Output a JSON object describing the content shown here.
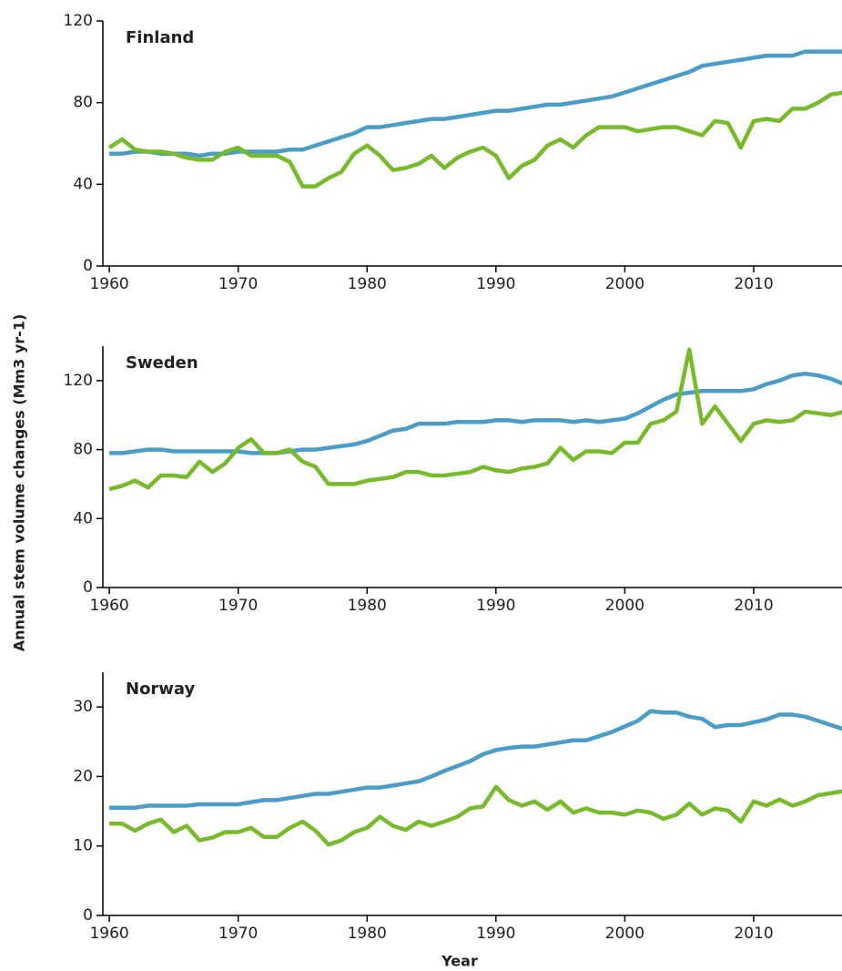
{
  "chart_data": [
    {
      "type": "line",
      "title": "Finland",
      "x": [
        1960,
        1961,
        1962,
        1963,
        1964,
        1965,
        1966,
        1967,
        1968,
        1969,
        1970,
        1971,
        1972,
        1973,
        1974,
        1975,
        1976,
        1977,
        1978,
        1979,
        1980,
        1981,
        1982,
        1983,
        1984,
        1985,
        1986,
        1987,
        1988,
        1989,
        1990,
        1991,
        1992,
        1993,
        1994,
        1995,
        1996,
        1997,
        1998,
        1999,
        2000,
        2001,
        2002,
        2003,
        2004,
        2005,
        2006,
        2007,
        2008,
        2009,
        2010,
        2011,
        2012,
        2013,
        2014,
        2015,
        2016,
        2017
      ],
      "series": [
        {
          "color": "#4a9cc9",
          "values": [
            55,
            55,
            56,
            56,
            55,
            55,
            55,
            54,
            55,
            55,
            56,
            56,
            56,
            56,
            57,
            57,
            59,
            61,
            63,
            65,
            68,
            68,
            69,
            70,
            71,
            72,
            72,
            73,
            74,
            75,
            76,
            76,
            77,
            78,
            79,
            79,
            80,
            81,
            82,
            83,
            85,
            87,
            89,
            91,
            93,
            95,
            98,
            99,
            100,
            101,
            102,
            103,
            103,
            103,
            105,
            105,
            105,
            105
          ]
        },
        {
          "color": "#78bb2a",
          "values": [
            58,
            62,
            57,
            56,
            56,
            55,
            53,
            52,
            52,
            56,
            58,
            54,
            54,
            54,
            51,
            39,
            39,
            43,
            46,
            55,
            59,
            54,
            47,
            48,
            50,
            54,
            48,
            53,
            56,
            58,
            54,
            43,
            49,
            52,
            59,
            62,
            58,
            64,
            68,
            68,
            68,
            66,
            67,
            68,
            68,
            66,
            64,
            71,
            70,
            58,
            71,
            72,
            71,
            77,
            77,
            80,
            84,
            85
          ]
        }
      ],
      "xlim": [
        1959.5,
        2016.85
      ],
      "xticks": [
        1960,
        1970,
        1980,
        1990,
        2000,
        2010
      ],
      "ylim": [
        0,
        120
      ],
      "yticks": [
        0,
        40,
        80,
        120
      ]
    },
    {
      "type": "line",
      "title": "Sweden",
      "ylabel": "Annual stem volume changes (Mm3 yr-1)",
      "x": [
        1960,
        1961,
        1962,
        1963,
        1964,
        1965,
        1966,
        1967,
        1968,
        1969,
        1970,
        1971,
        1972,
        1973,
        1974,
        1975,
        1976,
        1977,
        1978,
        1979,
        1980,
        1981,
        1982,
        1983,
        1984,
        1985,
        1986,
        1987,
        1988,
        1989,
        1990,
        1991,
        1992,
        1993,
        1994,
        1995,
        1996,
        1997,
        1998,
        1999,
        2000,
        2001,
        2002,
        2003,
        2004,
        2005,
        2006,
        2007,
        2008,
        2009,
        2010,
        2011,
        2012,
        2013,
        2014,
        2015,
        2016,
        2017
      ],
      "series": [
        {
          "color": "#4a9cc9",
          "values": [
            78,
            78,
            79,
            80,
            80,
            79,
            79,
            79,
            79,
            79,
            79,
            78,
            78,
            78,
            79,
            80,
            80,
            81,
            82,
            83,
            85,
            88,
            91,
            92,
            95,
            95,
            95,
            96,
            96,
            96,
            97,
            97,
            96,
            97,
            97,
            97,
            96,
            97,
            96,
            97,
            98,
            101,
            105,
            109,
            112,
            113,
            114,
            114,
            114,
            114,
            115,
            118,
            120,
            123,
            124,
            123,
            121,
            118
          ]
        },
        {
          "color": "#78bb2a",
          "values": [
            57,
            59,
            62,
            58,
            65,
            65,
            64,
            73,
            67,
            72,
            81,
            86,
            78,
            78,
            80,
            73,
            70,
            60,
            60,
            60,
            62,
            63,
            64,
            67,
            67,
            65,
            65,
            66,
            67,
            70,
            68,
            67,
            69,
            70,
            72,
            81,
            74,
            79,
            79,
            78,
            84,
            84,
            95,
            97,
            102,
            138,
            95,
            105,
            95,
            85,
            95,
            97,
            96,
            97,
            102,
            101,
            100,
            102
          ]
        }
      ],
      "xlim": [
        1959.5,
        2016.85
      ],
      "xticks": [
        1960,
        1970,
        1980,
        1990,
        2000,
        2010
      ],
      "ylim": [
        0,
        140
      ],
      "yticks": [
        0,
        40,
        80,
        120
      ]
    },
    {
      "type": "line",
      "title": "Norway",
      "xlabel": "Year",
      "x": [
        1960,
        1961,
        1962,
        1963,
        1964,
        1965,
        1966,
        1967,
        1968,
        1969,
        1970,
        1971,
        1972,
        1973,
        1974,
        1975,
        1976,
        1977,
        1978,
        1979,
        1980,
        1981,
        1982,
        1983,
        1984,
        1985,
        1986,
        1987,
        1988,
        1989,
        1990,
        1991,
        1992,
        1993,
        1994,
        1995,
        1996,
        1997,
        1998,
        1999,
        2000,
        2001,
        2002,
        2003,
        2004,
        2005,
        2006,
        2007,
        2008,
        2009,
        2010,
        2011,
        2012,
        2013,
        2014,
        2015,
        2016,
        2017
      ],
      "series": [
        {
          "color": "#4a9cc9",
          "values": [
            15.5,
            15.5,
            15.5,
            15.8,
            15.8,
            15.8,
            15.8,
            16,
            16,
            16,
            16,
            16.3,
            16.6,
            16.6,
            16.9,
            17.2,
            17.5,
            17.5,
            17.8,
            18.1,
            18.4,
            18.4,
            18.7,
            19,
            19.3,
            20,
            20.8,
            21.5,
            22.2,
            23.2,
            23.8,
            24.1,
            24.3,
            24.3,
            24.6,
            24.9,
            25.2,
            25.2,
            25.8,
            26.4,
            27.2,
            28,
            29.4,
            29.2,
            29.2,
            28.6,
            28.3,
            27.1,
            27.4,
            27.4,
            27.8,
            28.2,
            28.9,
            28.9,
            28.6,
            28,
            27.4,
            26.8
          ]
        },
        {
          "color": "#78bb2a",
          "values": [
            13.2,
            13.2,
            12.2,
            13.2,
            13.8,
            12,
            12.9,
            10.8,
            11.2,
            12,
            12,
            12.6,
            11.3,
            11.3,
            12.6,
            13.5,
            12.2,
            10.2,
            10.8,
            12,
            12.6,
            14.2,
            12.9,
            12.3,
            13.5,
            12.9,
            13.5,
            14.2,
            15.4,
            15.7,
            18.5,
            16.6,
            15.8,
            16.4,
            15.2,
            16.4,
            14.8,
            15.4,
            14.8,
            14.8,
            14.5,
            15.1,
            14.8,
            13.9,
            14.5,
            16.1,
            14.5,
            15.4,
            15.1,
            13.5,
            16.4,
            15.8,
            16.7,
            15.8,
            16.4,
            17.3,
            17.6,
            17.9
          ]
        }
      ],
      "xlim": [
        1959.5,
        2016.85
      ],
      "xticks": [
        1960,
        1970,
        1980,
        1990,
        2000,
        2010
      ],
      "ylim": [
        0,
        35
      ],
      "yticks": [
        0,
        10,
        20,
        30
      ]
    }
  ]
}
